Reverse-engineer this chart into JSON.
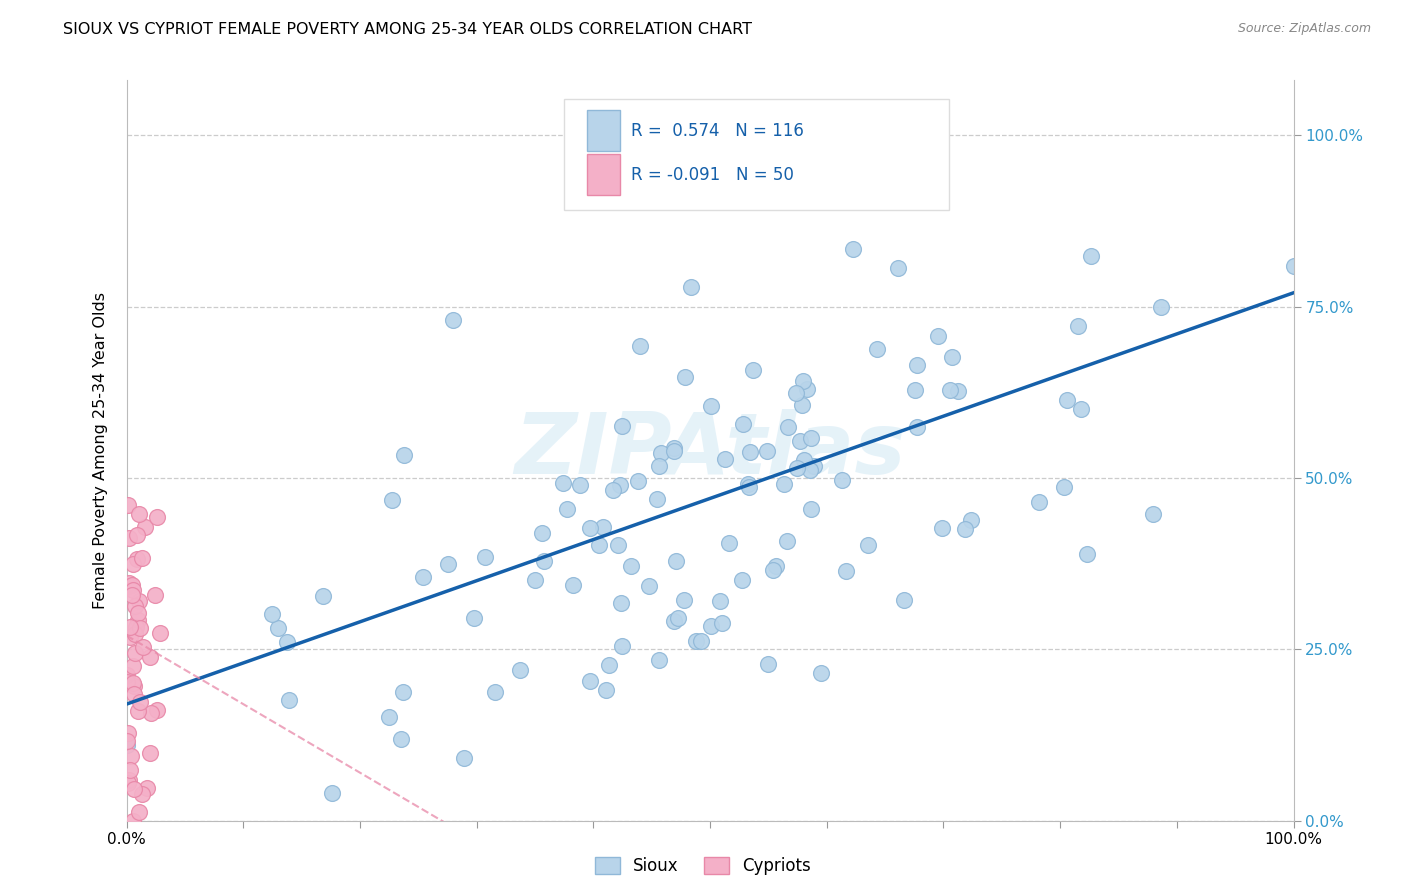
{
  "title": "SIOUX VS CYPRIOT FEMALE POVERTY AMONG 25-34 YEAR OLDS CORRELATION CHART",
  "source": "Source: ZipAtlas.com",
  "ylabel": "Female Poverty Among 25-34 Year Olds",
  "sioux_color": "#b8d4ea",
  "cypriot_color": "#f4b0c8",
  "sioux_edge_color": "#90b8d8",
  "cypriot_edge_color": "#e888a8",
  "sioux_line_color": "#1560aa",
  "cypriot_line_color": "#e888a8",
  "R_sioux": 0.574,
  "N_sioux": 116,
  "R_cypriot": -0.091,
  "N_cypriot": 50,
  "legend_text_color": "#1560aa",
  "grid_color": "#cccccc",
  "watermark_color": "#d0e8f4",
  "right_tick_color": "#3399cc"
}
